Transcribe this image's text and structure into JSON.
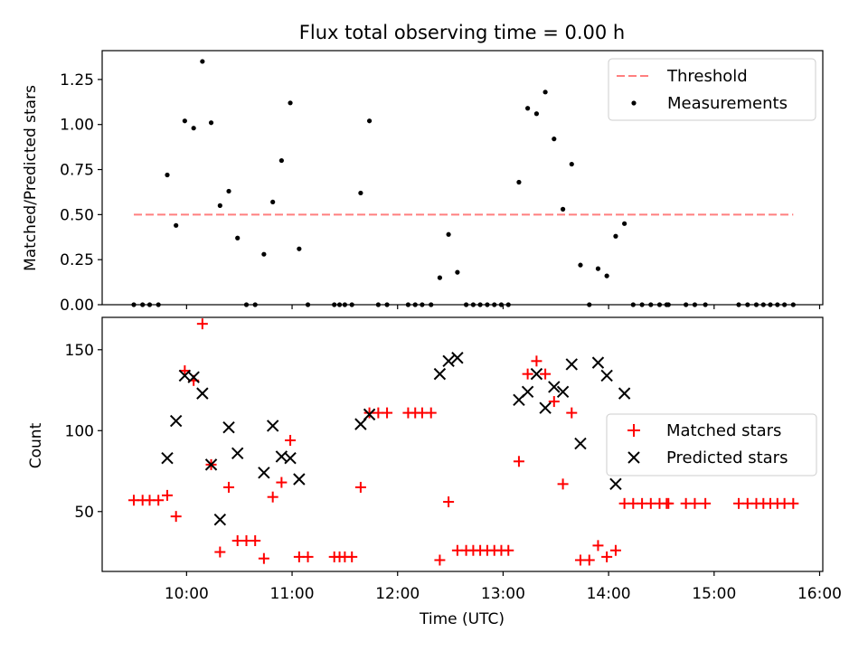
{
  "chart_data": [
    {
      "type": "scatter",
      "title": "Flux total observing time = 0.00 h",
      "xlabel": "",
      "ylabel": "Matched/Predicted stars",
      "xlim": [
        9.2,
        16.03
      ],
      "ylim": [
        0.0,
        1.41
      ],
      "yticks": [
        0.0,
        0.25,
        0.5,
        0.75,
        1.0,
        1.25
      ],
      "ytick_labels": [
        "0.00",
        "0.25",
        "0.50",
        "0.75",
        "1.00",
        "1.25"
      ],
      "legend_position": "top-right",
      "threshold": {
        "name": "Threshold",
        "color": "#ff7f7f",
        "style": "dashed",
        "x": [
          9.5,
          15.75
        ],
        "y": 0.5
      },
      "series": [
        {
          "name": "Measurements",
          "color": "#000000",
          "marker": "dot",
          "x": [
            9.5,
            9.583,
            9.65,
            9.733,
            9.817,
            9.9,
            9.983,
            10.067,
            10.15,
            10.233,
            10.317,
            10.4,
            10.483,
            10.567,
            10.65,
            10.733,
            10.817,
            10.9,
            10.983,
            11.067,
            11.15,
            11.4,
            11.45,
            11.5,
            11.567,
            11.65,
            11.733,
            11.817,
            11.9,
            12.1,
            12.167,
            12.233,
            12.317,
            12.4,
            12.483,
            12.567,
            12.65,
            12.717,
            12.783,
            12.85,
            12.917,
            12.983,
            13.05,
            13.15,
            13.233,
            13.317,
            13.4,
            13.483,
            13.567,
            13.65,
            13.733,
            13.817,
            13.9,
            13.983,
            14.067,
            14.15,
            14.233,
            14.317,
            14.4,
            14.483,
            14.55,
            14.567,
            14.733,
            14.817,
            14.917,
            15.233,
            15.317,
            15.4,
            15.467,
            15.533,
            15.6,
            15.667,
            15.75
          ],
          "y": [
            0.0,
            0.0,
            0.0,
            0.0,
            0.72,
            0.44,
            1.02,
            0.98,
            1.35,
            1.01,
            0.55,
            0.63,
            0.37,
            0.0,
            0.0,
            0.28,
            0.57,
            0.8,
            1.12,
            0.31,
            0.0,
            0.0,
            0.0,
            0.0,
            0.0,
            0.62,
            1.02,
            0.0,
            0.0,
            0.0,
            0.0,
            0.0,
            0.0,
            0.15,
            0.39,
            0.18,
            0.0,
            0.0,
            0.0,
            0.0,
            0.0,
            0.0,
            0.0,
            0.68,
            1.09,
            1.06,
            1.18,
            0.92,
            0.53,
            0.78,
            0.22,
            0.0,
            0.2,
            0.16,
            0.38,
            0.45,
            0.0,
            0.0,
            0.0,
            0.0,
            0.0,
            0.0,
            0.0,
            0.0,
            0.0,
            0.0,
            0.0,
            0.0,
            0.0,
            0.0,
            0.0,
            0.0,
            0.0
          ]
        }
      ]
    },
    {
      "type": "scatter",
      "title": "",
      "xlabel": "Time (UTC)",
      "ylabel": "Count",
      "xlim": [
        9.2,
        16.03
      ],
      "ylim": [
        13,
        170
      ],
      "xticks": [
        10,
        11,
        12,
        13,
        14,
        15,
        16
      ],
      "xtick_labels": [
        "10:00",
        "11:00",
        "12:00",
        "13:00",
        "14:00",
        "15:00",
        "16:00"
      ],
      "yticks": [
        50,
        100,
        150
      ],
      "ytick_labels": [
        "50",
        "100",
        "150"
      ],
      "legend_position": "center-right",
      "series": [
        {
          "name": "Matched stars",
          "color": "#ff0000",
          "marker": "plus",
          "x": [
            9.5,
            9.583,
            9.65,
            9.733,
            9.817,
            9.9,
            9.983,
            10.067,
            10.15,
            10.233,
            10.317,
            10.4,
            10.483,
            10.567,
            10.65,
            10.733,
            10.817,
            10.9,
            10.983,
            11.067,
            11.15,
            11.4,
            11.45,
            11.5,
            11.567,
            11.65,
            11.733,
            11.817,
            11.9,
            12.1,
            12.167,
            12.233,
            12.317,
            12.4,
            12.483,
            12.567,
            12.65,
            12.717,
            12.783,
            12.85,
            12.917,
            12.983,
            13.05,
            13.15,
            13.233,
            13.317,
            13.4,
            13.483,
            13.567,
            13.65,
            13.733,
            13.817,
            13.9,
            13.983,
            14.067,
            14.15,
            14.233,
            14.317,
            14.4,
            14.483,
            14.55,
            14.567,
            14.733,
            14.817,
            14.917,
            15.233,
            15.317,
            15.4,
            15.467,
            15.533,
            15.6,
            15.667,
            15.75
          ],
          "y": [
            57,
            57,
            57,
            57,
            60,
            47,
            137,
            131,
            166,
            79,
            25,
            65,
            32,
            32,
            32,
            21,
            59,
            68,
            94,
            22,
            22,
            22,
            22,
            22,
            22,
            65,
            111,
            111,
            111,
            111,
            111,
            111,
            111,
            20,
            56,
            26,
            26,
            26,
            26,
            26,
            26,
            26,
            26,
            81,
            135,
            143,
            135,
            118,
            67,
            111,
            20,
            20,
            29,
            22,
            26,
            55,
            55,
            55,
            55,
            55,
            55,
            55,
            55,
            55,
            55,
            55,
            55,
            55,
            55,
            55,
            55,
            55,
            55
          ]
        },
        {
          "name": "Predicted stars",
          "color": "#000000",
          "marker": "x",
          "x": [
            9.817,
            9.9,
            9.983,
            10.067,
            10.15,
            10.233,
            10.317,
            10.4,
            10.483,
            10.733,
            10.817,
            10.9,
            10.983,
            11.067,
            11.65,
            11.733,
            12.4,
            12.483,
            12.567,
            13.15,
            13.233,
            13.317,
            13.4,
            13.483,
            13.567,
            13.65,
            13.733,
            13.9,
            13.983,
            14.067,
            14.15
          ],
          "y": [
            83,
            106,
            134,
            133,
            123,
            79,
            45,
            102,
            86,
            74,
            103,
            84,
            83,
            70,
            104,
            110,
            135,
            143,
            145,
            119,
            124,
            135,
            114,
            127,
            124,
            141,
            92,
            142,
            134,
            67,
            123
          ]
        }
      ]
    }
  ]
}
